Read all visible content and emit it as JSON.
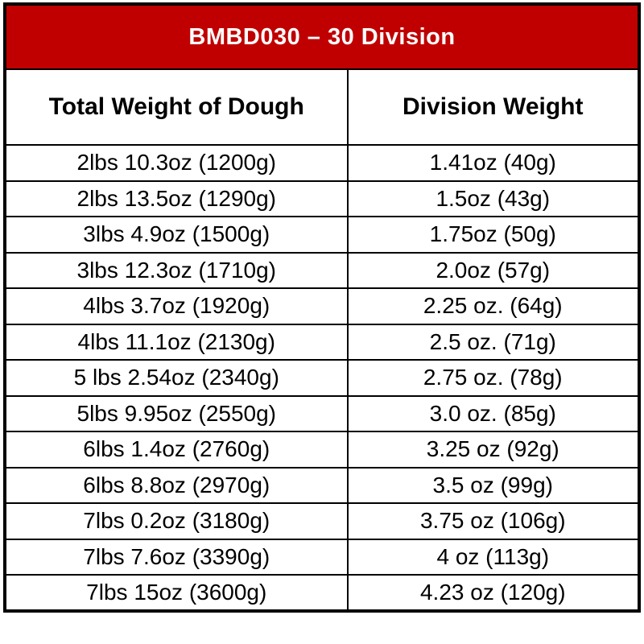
{
  "colors": {
    "banner_bg": "#c00000",
    "banner_text": "#ffffff",
    "border": "#000000",
    "cell_bg": "#ffffff",
    "text": "#000000"
  },
  "chart_data": {
    "type": "table",
    "title": "BMBD030 – 30 Division",
    "columns": [
      "Total Weight of Dough",
      "Division Weight"
    ],
    "rows": [
      [
        "2lbs 10.3oz (1200g)",
        "1.41oz (40g)"
      ],
      [
        "2lbs 13.5oz (1290g)",
        "1.5oz (43g)"
      ],
      [
        "3lbs 4.9oz (1500g)",
        "1.75oz (50g)"
      ],
      [
        "3lbs 12.3oz (1710g)",
        "2.0oz (57g)"
      ],
      [
        "4lbs 3.7oz (1920g)",
        "2.25 oz. (64g)"
      ],
      [
        "4lbs 11.1oz (2130g)",
        "2.5 oz. (71g)"
      ],
      [
        "5 lbs 2.54oz (2340g)",
        "2.75 oz. (78g)"
      ],
      [
        "5lbs 9.95oz (2550g)",
        "3.0 oz. (85g)"
      ],
      [
        "6lbs 1.4oz (2760g)",
        "3.25 oz (92g)"
      ],
      [
        "6lbs 8.8oz (2970g)",
        "3.5 oz (99g)"
      ],
      [
        "7lbs 0.2oz (3180g)",
        "3.75 oz (106g)"
      ],
      [
        "7lbs 7.6oz (3390g)",
        "4 oz (113g)"
      ],
      [
        "7lbs 15oz (3600g)",
        "4.23 oz (120g)"
      ]
    ]
  }
}
